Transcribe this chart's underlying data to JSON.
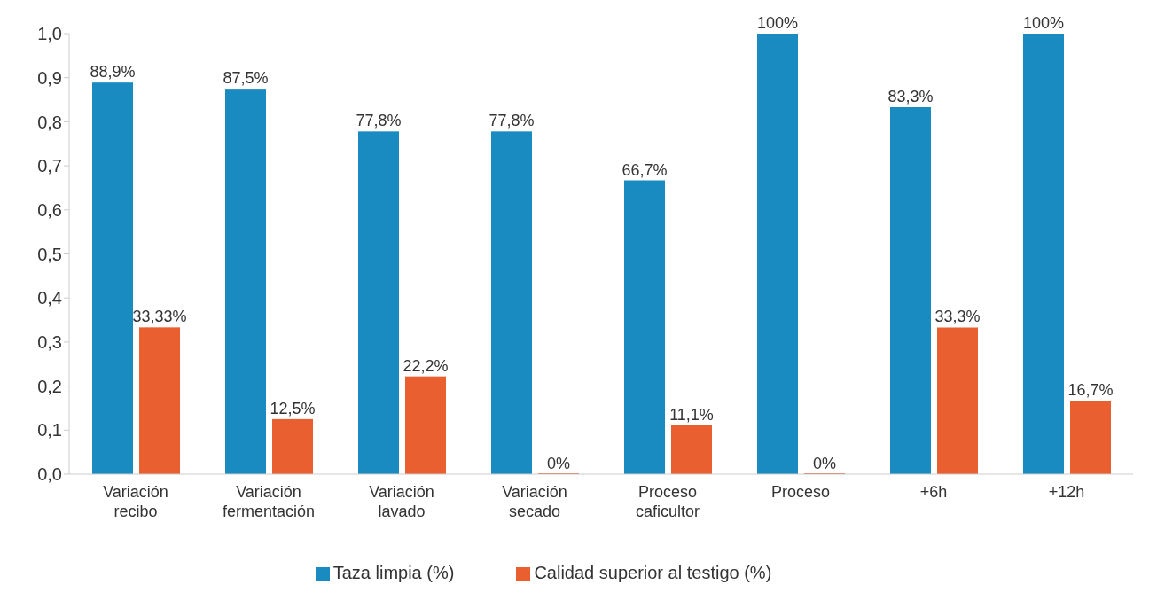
{
  "chart_data": {
    "type": "bar",
    "categories": [
      "Variación recibo",
      "Variación fermentación",
      "Variación lavado",
      "Variación secado",
      "Proceso caficultor",
      "Proceso",
      "+6h",
      "+12h"
    ],
    "series": [
      {
        "name": "Taza limpia (%)",
        "color": "#1a8bc0",
        "values": [
          0.889,
          0.875,
          0.778,
          0.778,
          0.667,
          1.0,
          0.833,
          1.0
        ],
        "value_labels": [
          "88,9%",
          "87,5%",
          "77,8%",
          "77,8%",
          "66,7%",
          "100%",
          "83,3%",
          "100%"
        ]
      },
      {
        "name": "Calidad superior al testigo (%)",
        "color": "#e95f2f",
        "values": [
          0.3333,
          0.125,
          0.222,
          0,
          0.111,
          0,
          0.333,
          0.167
        ],
        "value_labels": [
          "33,33%",
          "12,5%",
          "22,2%",
          "0%",
          "11,1%",
          "0%",
          "33,3%",
          "16,7%"
        ]
      }
    ],
    "ylim": [
      0,
      1
    ],
    "yticks": [
      {
        "value": 0,
        "label": "0,0"
      },
      {
        "value": 0.1,
        "label": "0,1"
      },
      {
        "value": 0.2,
        "label": "0,2"
      },
      {
        "value": 0.3,
        "label": "0,3"
      },
      {
        "value": 0.4,
        "label": "0,4"
      },
      {
        "value": 0.5,
        "label": "0,5"
      },
      {
        "value": 0.6,
        "label": "0,6"
      },
      {
        "value": 0.7,
        "label": "0,7"
      },
      {
        "value": 0.8,
        "label": "0,8"
      },
      {
        "value": 0.9,
        "label": "0,9"
      },
      {
        "value": 1,
        "label": "1,0"
      }
    ],
    "grid": false,
    "legend": "bottom"
  }
}
